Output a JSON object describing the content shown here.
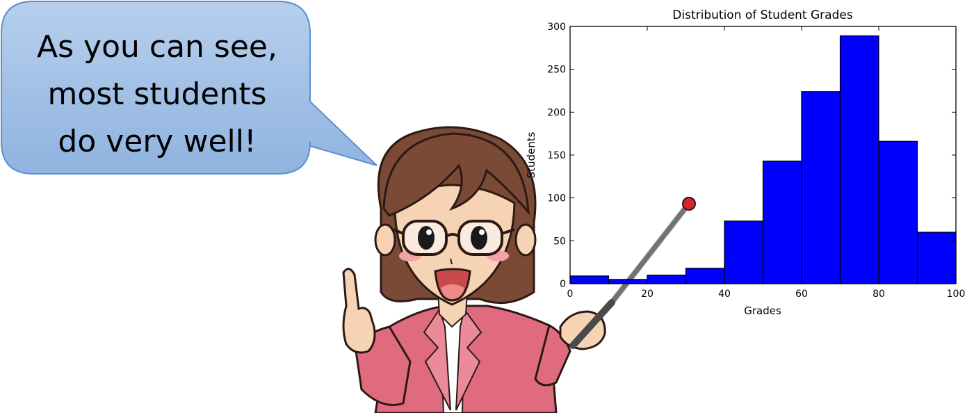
{
  "speech_bubble": {
    "lines": [
      "As you can see,",
      "most students",
      "do very well!"
    ]
  },
  "colors": {
    "bubble_fill_top": "#b7cfec",
    "bubble_fill_bottom": "#8fb3e0",
    "bubble_stroke": "#5b8fd0",
    "bar_fill": "#0000ff",
    "jacket": "#e06b7f",
    "hair": "#7b4a37",
    "skin": "#f7d3b5"
  },
  "chart_data": {
    "type": "bar",
    "title": "Distribution of Student Grades",
    "xlabel": "Grades",
    "ylabel": "Students",
    "bins": [
      [
        0,
        10
      ],
      [
        10,
        20
      ],
      [
        20,
        30
      ],
      [
        30,
        40
      ],
      [
        40,
        50
      ],
      [
        50,
        60
      ],
      [
        60,
        70
      ],
      [
        70,
        80
      ],
      [
        80,
        90
      ],
      [
        90,
        100
      ]
    ],
    "values": [
      9,
      5,
      10,
      18,
      73,
      143,
      224,
      289,
      166,
      60
    ],
    "xlim": [
      0,
      100
    ],
    "ylim": [
      0,
      300
    ],
    "xticks": [
      "0",
      "20",
      "40",
      "60",
      "80",
      "100"
    ],
    "yticks": [
      "0",
      "50",
      "100",
      "150",
      "200",
      "250",
      "300"
    ],
    "grid": false
  }
}
